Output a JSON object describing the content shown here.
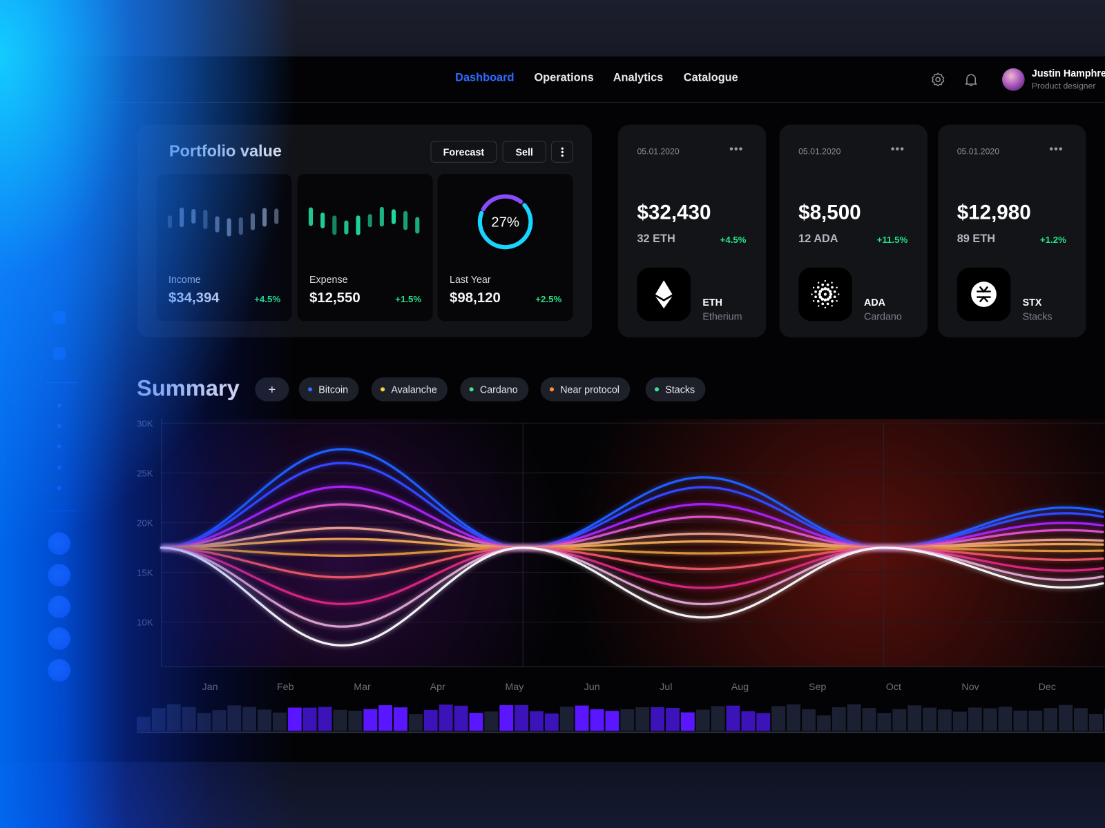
{
  "nav": {
    "items": [
      "Dashboard",
      "Operations",
      "Analytics",
      "Catalogue"
    ],
    "active": 0
  },
  "user": {
    "name": "Justin Hamphrey",
    "role": "Product designer"
  },
  "portfolio": {
    "title": "Portfolio value",
    "buttons": [
      "Forecast",
      "Sell"
    ],
    "cards": [
      {
        "label": "Income",
        "value": "$34,394",
        "change": "+4.5%"
      },
      {
        "label": "Expense",
        "value": "$12,550",
        "change": "+1.5%"
      },
      {
        "label": "Last Year",
        "value": "$98,120",
        "change": "+2.5%",
        "ring": {
          "value": 27,
          "label": "27%"
        }
      }
    ]
  },
  "coins": [
    {
      "date": "05.01.2020",
      "amount": "$32,430",
      "quantity": "32 ETH",
      "change": "+4.5%",
      "symbol": "ETH",
      "name": "Etherium"
    },
    {
      "date": "05.01.2020",
      "amount": "$8,500",
      "quantity": "12 ADA",
      "change": "+11.5%",
      "symbol": "ADA",
      "name": "Cardano"
    },
    {
      "date": "05.01.2020",
      "amount": "$12,980",
      "quantity": "89 ETH",
      "change": "+1.2%",
      "symbol": "STX",
      "name": "Stacks"
    }
  ],
  "summary": {
    "title": "Summary",
    "chips": [
      {
        "name": "Bitcoin",
        "color": "#2f6bff"
      },
      {
        "name": "Avalanche",
        "color": "#f5d23a"
      },
      {
        "name": "Cardano",
        "color": "#3ee08a"
      },
      {
        "name": "Near protocol",
        "color": "#ff8a3d"
      },
      {
        "name": "Stacks",
        "color": "#3ee08a"
      }
    ],
    "chart": {
      "ylim": [
        5500,
        30000
      ],
      "yticks": [
        {
          "value": 30000,
          "label": "30K"
        },
        {
          "value": 25000,
          "label": "25K"
        },
        {
          "value": 20000,
          "label": "20K"
        },
        {
          "value": 15000,
          "label": "15K"
        },
        {
          "value": 10000,
          "label": "10K"
        }
      ],
      "months": [
        "Jan",
        "Feb",
        "Mar",
        "Apr",
        "May",
        "Jun",
        "Jul",
        "Aug",
        "Sep",
        "Oct",
        "Nov",
        "Dec"
      ]
    }
  }
}
